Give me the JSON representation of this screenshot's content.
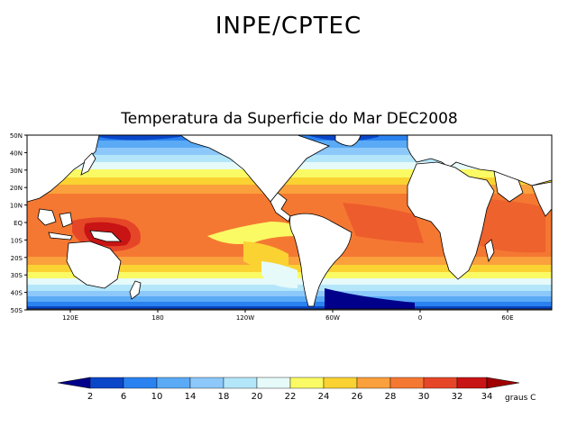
{
  "header": {
    "title": "INPE/CPTEC"
  },
  "map": {
    "title": "Temperatura da Superficie do Mar DEC2008",
    "lat_labels": [
      "50N",
      "40N",
      "30N",
      "20N",
      "10N",
      "EQ",
      "10S",
      "20S",
      "30S",
      "40S",
      "50S"
    ],
    "lon_labels": [
      "120E",
      "180",
      "120W",
      "60W",
      "0",
      "60E"
    ]
  },
  "colorbar": {
    "labels": [
      "2",
      "6",
      "10",
      "14",
      "18",
      "20",
      "22",
      "24",
      "26",
      "28",
      "30",
      "32",
      "34"
    ],
    "units": "graus C",
    "colors": [
      "#00008a",
      "#0a46c8",
      "#2a82f0",
      "#5aaaf5",
      "#8cc8fa",
      "#b4e6fa",
      "#e6fafa",
      "#fafa64",
      "#fad232",
      "#faa03c",
      "#f57832",
      "#e64628",
      "#c81414",
      "#a00000"
    ]
  }
}
